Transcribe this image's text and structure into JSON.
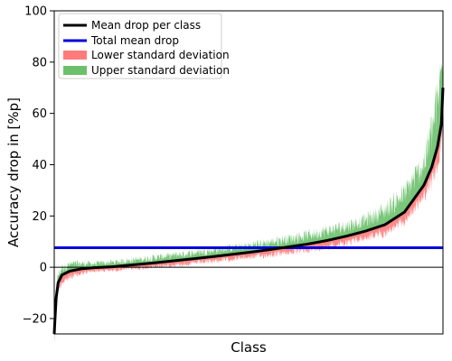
{
  "chart_data": {
    "type": "line",
    "xlabel": "Class",
    "ylabel": "Accuracy drop in [%p]",
    "ylim": [
      -26,
      100
    ],
    "yticks": [
      -20,
      0,
      20,
      40,
      60,
      80,
      100
    ],
    "xticks": [],
    "n_classes": 1000,
    "grid": false,
    "legend_position": "top-left",
    "total_mean_drop": 7.6,
    "zero_line": 0,
    "series": [
      {
        "name": "Mean drop per class",
        "color": "#000000",
        "kind": "line"
      },
      {
        "name": "Total mean drop",
        "color": "#0000dd",
        "kind": "hline"
      },
      {
        "name": "Lower standard deviation",
        "color": "#ff7b7b",
        "kind": "band"
      },
      {
        "name": "Upper standard deviation",
        "color": "#6cc06c",
        "kind": "band"
      }
    ],
    "mean_curve_points": [
      [
        0,
        -26
      ],
      [
        2,
        -20
      ],
      [
        5,
        -12
      ],
      [
        10,
        -6
      ],
      [
        20,
        -3
      ],
      [
        40,
        -1.5
      ],
      [
        70,
        -0.6
      ],
      [
        100,
        -0.2
      ],
      [
        150,
        0.2
      ],
      [
        200,
        0.9
      ],
      [
        250,
        1.6
      ],
      [
        300,
        2.4
      ],
      [
        350,
        3.2
      ],
      [
        400,
        4.0
      ],
      [
        450,
        4.9
      ],
      [
        500,
        5.8
      ],
      [
        550,
        6.8
      ],
      [
        600,
        7.9
      ],
      [
        650,
        9.0
      ],
      [
        700,
        10.4
      ],
      [
        750,
        12.1
      ],
      [
        800,
        14.1
      ],
      [
        850,
        16.6
      ],
      [
        900,
        21.5
      ],
      [
        950,
        32
      ],
      [
        970,
        39
      ],
      [
        985,
        47
      ],
      [
        995,
        56
      ],
      [
        999,
        70
      ]
    ],
    "std_envelope": {
      "lower_offset_points": [
        [
          0,
          3
        ],
        [
          100,
          1.2
        ],
        [
          500,
          1.8
        ],
        [
          800,
          2.5
        ],
        [
          950,
          4
        ],
        [
          999,
          8
        ]
      ],
      "upper_offset_points": [
        [
          0,
          3
        ],
        [
          100,
          1.5
        ],
        [
          500,
          2.5
        ],
        [
          800,
          4
        ],
        [
          950,
          8
        ],
        [
          999,
          20
        ]
      ]
    }
  }
}
